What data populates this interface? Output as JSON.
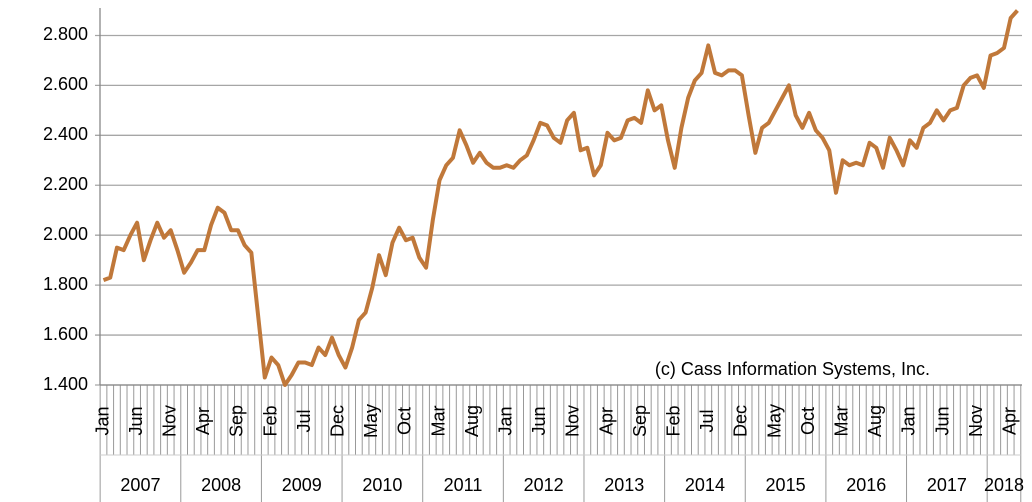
{
  "chart_data": {
    "type": "line",
    "annotation": "(c) Cass Information Systems, Inc.",
    "categories": [
      "Jan",
      null,
      null,
      null,
      null,
      "Jun",
      null,
      null,
      null,
      null,
      "Nov",
      null,
      null,
      null,
      null,
      "Apr",
      null,
      null,
      null,
      null,
      "Sep",
      null,
      null,
      null,
      null,
      "Feb",
      null,
      null,
      null,
      null,
      "Jul",
      null,
      null,
      null,
      null,
      "Dec",
      null,
      null,
      null,
      null,
      "May",
      null,
      null,
      null,
      null,
      "Oct",
      null,
      null,
      null,
      null,
      "Mar",
      null,
      null,
      null,
      null,
      "Aug",
      null,
      null,
      null,
      null,
      "Jan",
      null,
      null,
      null,
      null,
      "Jun",
      null,
      null,
      null,
      null,
      "Nov",
      null,
      null,
      null,
      null,
      "Apr",
      null,
      null,
      null,
      null,
      "Sep",
      null,
      null,
      null,
      null,
      "Feb",
      null,
      null,
      null,
      null,
      "Jul",
      null,
      null,
      null,
      null,
      "Dec",
      null,
      null,
      null,
      null,
      "May",
      null,
      null,
      null,
      null,
      "Oct",
      null,
      null,
      null,
      null,
      "Mar",
      null,
      null,
      null,
      null,
      "Aug",
      null,
      null,
      null,
      null,
      "Jan",
      null,
      null,
      null,
      null,
      "Jun",
      null,
      null,
      null,
      null,
      "Nov",
      null,
      null,
      null,
      null,
      "Apr",
      null
    ],
    "year_groups": [
      "2007",
      "2008",
      "2009",
      "2010",
      "2011",
      "2012",
      "2013",
      "2014",
      "2015",
      "2016",
      "2017",
      "2018"
    ],
    "series": [
      {
        "color": "#c0783a",
        "values": [
          1.82,
          1.83,
          1.95,
          1.94,
          2.0,
          2.05,
          1.9,
          1.98,
          2.05,
          1.99,
          2.02,
          1.94,
          1.85,
          1.89,
          1.94,
          1.94,
          2.04,
          2.11,
          2.09,
          2.02,
          2.02,
          1.96,
          1.93,
          1.68,
          1.43,
          1.51,
          1.48,
          1.4,
          1.44,
          1.49,
          1.49,
          1.48,
          1.55,
          1.52,
          1.59,
          1.52,
          1.47,
          1.55,
          1.66,
          1.69,
          1.79,
          1.92,
          1.84,
          1.97,
          2.03,
          1.98,
          1.99,
          1.91,
          1.87,
          2.06,
          2.22,
          2.28,
          2.31,
          2.42,
          2.36,
          2.29,
          2.33,
          2.29,
          2.27,
          2.27,
          2.28,
          2.27,
          2.3,
          2.32,
          2.38,
          2.45,
          2.44,
          2.39,
          2.37,
          2.46,
          2.49,
          2.34,
          2.35,
          2.24,
          2.28,
          2.41,
          2.38,
          2.39,
          2.46,
          2.47,
          2.45,
          2.58,
          2.5,
          2.52,
          2.38,
          2.27,
          2.43,
          2.55,
          2.62,
          2.65,
          2.76,
          2.65,
          2.64,
          2.66,
          2.66,
          2.64,
          2.48,
          2.33,
          2.43,
          2.45,
          2.5,
          2.55,
          2.6,
          2.48,
          2.43,
          2.49,
          2.42,
          2.39,
          2.34,
          2.17,
          2.3,
          2.28,
          2.29,
          2.28,
          2.37,
          2.35,
          2.27,
          2.39,
          2.34,
          2.28,
          2.38,
          2.35,
          2.43,
          2.45,
          2.5,
          2.46,
          2.5,
          2.51,
          2.6,
          2.63,
          2.64,
          2.59,
          2.72,
          2.73,
          2.75,
          2.87,
          2.9
        ]
      }
    ],
    "ylim": [
      1.4,
      2.91
    ],
    "yticks": [
      {
        "value": 1.4,
        "label": "1.400"
      },
      {
        "value": 1.6,
        "label": "1.600"
      },
      {
        "value": 1.8,
        "label": "1.800"
      },
      {
        "value": 2.0,
        "label": "2.000"
      },
      {
        "value": 2.2,
        "label": "2.200"
      },
      {
        "value": 2.4,
        "label": "2.400"
      },
      {
        "value": 2.6,
        "label": "2.600"
      },
      {
        "value": 2.8,
        "label": "2.800"
      }
    ],
    "grid": true
  }
}
